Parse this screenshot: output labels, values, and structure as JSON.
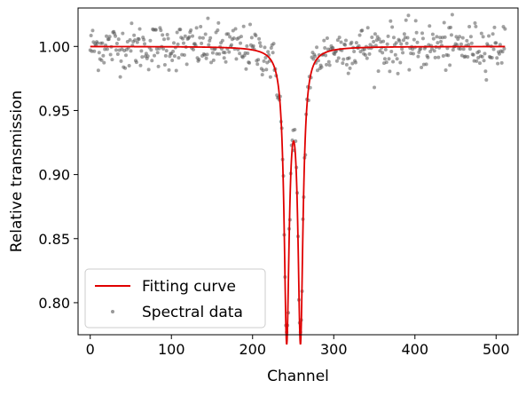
{
  "chart_data": {
    "type": "scatter",
    "title": "",
    "xlabel": "Channel",
    "ylabel": "Relative transmission",
    "xlim": [
      -15,
      527
    ],
    "ylim": [
      0.775,
      1.03
    ],
    "x_ticks": [
      0,
      100,
      200,
      300,
      400,
      500
    ],
    "x_tick_labels": [
      "0",
      "100",
      "200",
      "300",
      "400",
      "500"
    ],
    "y_ticks": [
      0.8,
      0.85,
      0.9,
      0.95,
      1.0
    ],
    "y_tick_labels": [
      "0.80",
      "0.85",
      "0.90",
      "0.95",
      "1.00"
    ],
    "grid": false,
    "legend_position": "bottom-left",
    "series": [
      {
        "name": "Fitting curve",
        "kind": "line",
        "color": "#e00000",
        "model": {
          "baseline": 1.0,
          "dips": [
            {
              "center": 242,
              "depth": 0.222,
              "hwhm": 3.8
            },
            {
              "center": 259,
              "depth": 0.222,
              "hwhm": 3.8
            }
          ],
          "x_range": [
            0,
            511
          ]
        }
      },
      {
        "name": "Spectral data",
        "kind": "scatter",
        "color": "#555555",
        "count": 512,
        "noise_sd": 0.009
      }
    ]
  }
}
